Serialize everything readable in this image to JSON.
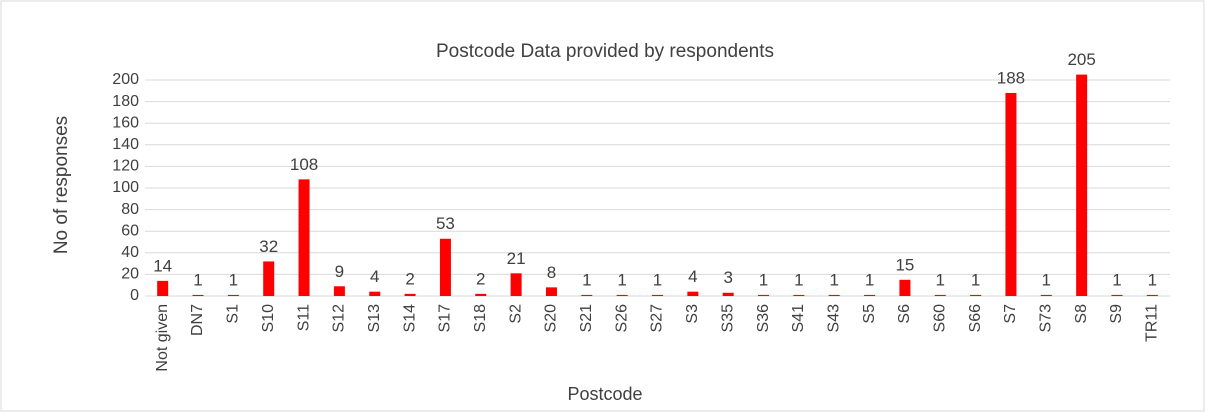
{
  "chart_data": {
    "type": "bar",
    "title": "Postcode Data provided by respondents",
    "x_label": "Postcode",
    "y_label": "No of responses",
    "categories": [
      "Not given",
      "DN7",
      "S1",
      "S10",
      "S11",
      "S12",
      "S13",
      "S14",
      "S17",
      "S18",
      "S2",
      "S20",
      "S21",
      "S26",
      "S27",
      "S3",
      "S35",
      "S36",
      "S41",
      "S43",
      "S5",
      "S6",
      "S60",
      "S66",
      "S7",
      "S73",
      "S8",
      "S9",
      "TR11"
    ],
    "values": [
      14,
      1,
      1,
      32,
      108,
      9,
      4,
      2,
      53,
      2,
      21,
      8,
      1,
      1,
      1,
      4,
      3,
      1,
      1,
      1,
      1,
      15,
      1,
      1,
      188,
      1,
      205,
      1,
      1
    ],
    "color": "#ff0000",
    "ylim": [
      0,
      200
    ],
    "yticks": [
      0,
      20,
      40,
      60,
      80,
      100,
      120,
      140,
      160,
      180,
      200
    ],
    "grid": true
  }
}
